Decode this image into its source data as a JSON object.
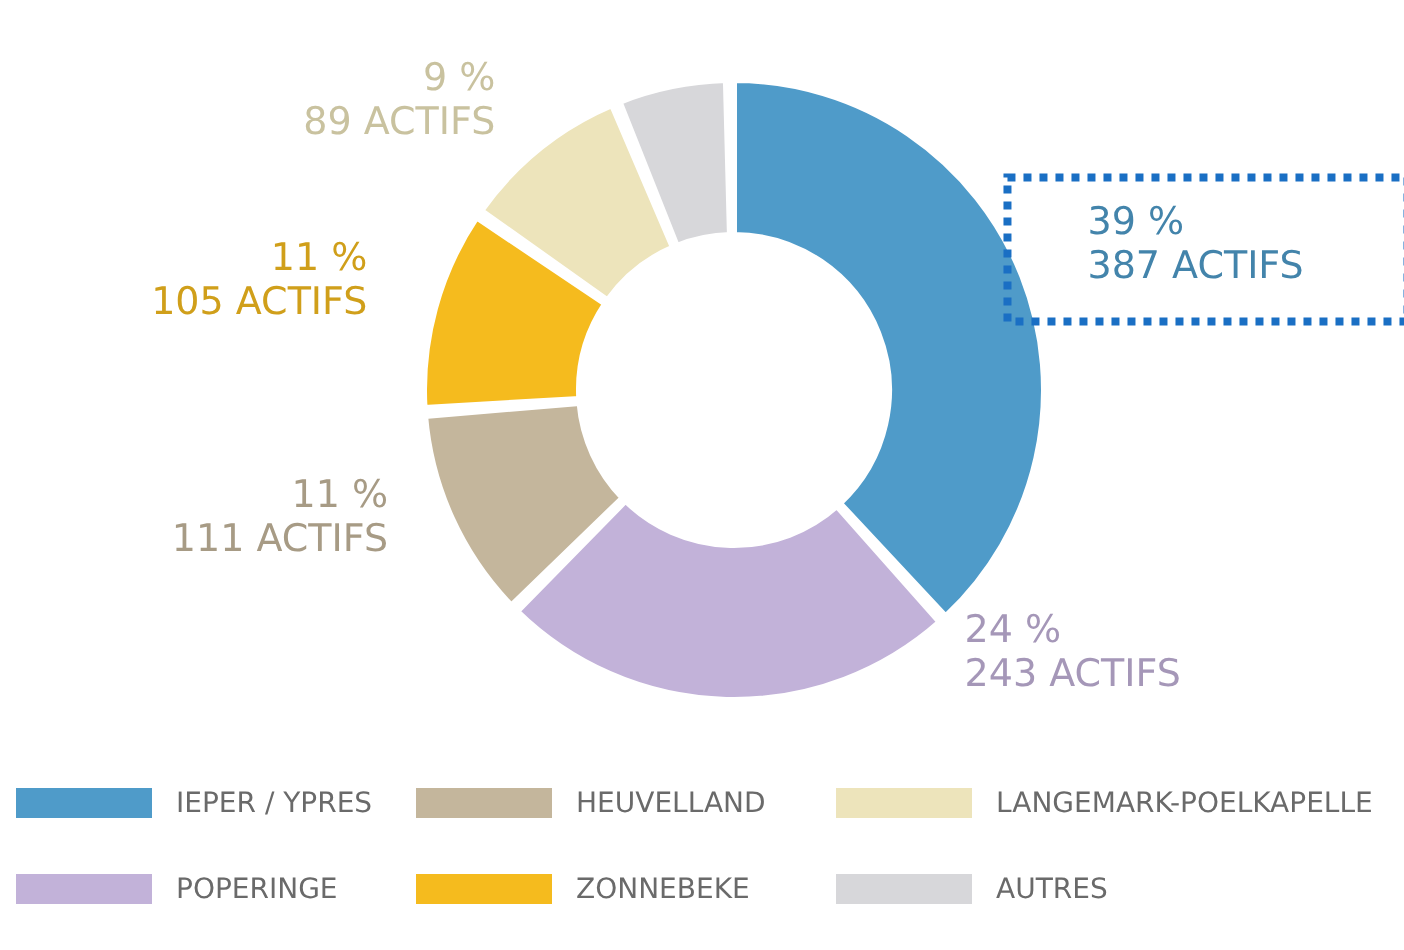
{
  "chart_data": {
    "type": "donut",
    "categories": [
      "IEPER / YPRES",
      "POPERINGE",
      "HEUVELLAND",
      "ZONNEBEKE",
      "LANGEMARK-POELKAPELLE",
      "AUTRES"
    ],
    "values": [
      387,
      243,
      111,
      105,
      89,
      57
    ],
    "colors": [
      "#4f9bc9",
      "#c2b2d9",
      "#c4b69c",
      "#f5bb1e",
      "#ede4bb",
      "#d7d7da"
    ],
    "value_labels": [
      "39 %\n387 ACTIFS",
      "24 %\n243 ACTIFS",
      "11 %\n111 ACTIFS",
      "11 %\n105 ACTIFS",
      "9 %\n89 ACTIFS",
      null
    ],
    "legend": "bottom"
  }
}
